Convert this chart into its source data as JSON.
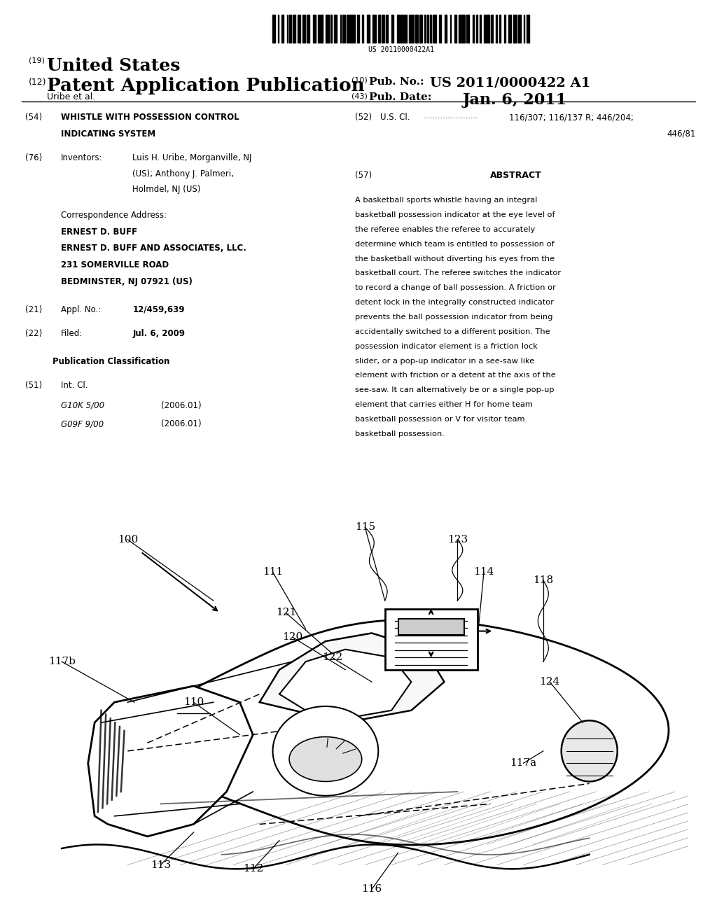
{
  "bg_color": "#ffffff",
  "barcode_text": "US 20110000422A1",
  "header": {
    "num19": "(19)",
    "united_states": "United States",
    "num12": "(12)",
    "patent_app": "Patent Application Publication",
    "num10": "(10)",
    "pub_no_label": "Pub. No.:",
    "pub_no_value": "US 2011/0000422 A1",
    "inventor_line": "Uribe et al.",
    "num43": "(43)",
    "pub_date_label": "Pub. Date:",
    "pub_date_value": "Jan. 6, 2011"
  },
  "left_col": {
    "num54": "(54)",
    "title_line1": "WHISTLE WITH POSSESSION CONTROL",
    "title_line2": "INDICATING SYSTEM",
    "num76": "(76)",
    "inventors_label": "Inventors:",
    "inventor1": "Luis H. Uribe, Morganville, NJ",
    "inventor1b": "(US); Anthony J. Palmeri,",
    "inventor1c": "Holmdel, NJ (US)",
    "corr_label": "Correspondence Address:",
    "corr1": "ERNEST D. BUFF",
    "corr2": "ERNEST D. BUFF AND ASSOCIATES, LLC.",
    "corr3": "231 SOMERVILLE ROAD",
    "corr4": "BEDMINSTER, NJ 07921 (US)",
    "num21": "(21)",
    "appl_label": "Appl. No.:",
    "appl_value": "12/459,639",
    "num22": "(22)",
    "filed_label": "Filed:",
    "filed_value": "Jul. 6, 2009",
    "pub_class_header": "Publication Classification",
    "num51": "(51)",
    "int_cl_label": "Int. Cl.",
    "class1_name": "G10K 5/00",
    "class1_year": "(2006.01)",
    "class2_name": "G09F 9/00",
    "class2_year": "(2006.01)"
  },
  "right_col": {
    "num52": "(52)",
    "us_cl_label": "U.S. Cl.",
    "us_cl_dots": "......................",
    "us_cl_value": "116/307; 116/137 R; 446/204;",
    "us_cl_value2": "446/81",
    "num57": "(57)",
    "abstract_header": "ABSTRACT",
    "abstract_text": "A basketball sports whistle having an integral basketball possession indicator at the eye level of the referee enables the referee to accurately determine which team is entitled to possession of the basketball without diverting his eyes from the basketball court. The referee switches the indicator to record a change of ball possession. A friction or detent lock in the integrally constructed indicator prevents the ball possession indicator from being accidentally switched to a different position. The possession indicator element is a friction lock slider, or a pop-up indicator in a see-saw like element with friction or a detent at the axis of the see-saw. It can alternatively be or a single pop-up element that carries either H for home team basketball possession or V for visitor team basketball possession."
  }
}
